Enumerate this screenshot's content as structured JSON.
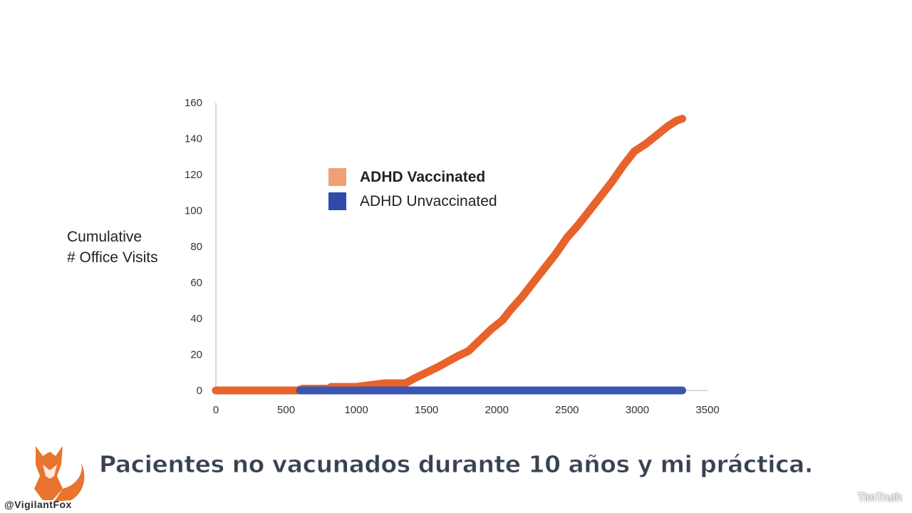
{
  "chart_data": {
    "type": "line",
    "ylabel_lines": [
      "Cumulative",
      "# Office Visits"
    ],
    "xlabel": "",
    "xlim": [
      0,
      3500
    ],
    "ylim": [
      0,
      160
    ],
    "x_ticks": [
      0,
      500,
      1000,
      1500,
      2000,
      2500,
      3000,
      3500
    ],
    "y_ticks": [
      0,
      20,
      40,
      60,
      80,
      100,
      120,
      140,
      160
    ],
    "grid": false,
    "legend_position": "upper-left",
    "series": [
      {
        "name": "ADHD Vaccinated",
        "color": "#e8622c",
        "legend_swatch": "#f0a072",
        "points": [
          [
            0,
            0
          ],
          [
            300,
            0
          ],
          [
            580,
            0
          ],
          [
            620,
            1
          ],
          [
            800,
            1
          ],
          [
            820,
            2
          ],
          [
            1000,
            2
          ],
          [
            1100,
            3
          ],
          [
            1200,
            4
          ],
          [
            1350,
            4
          ],
          [
            1420,
            7
          ],
          [
            1500,
            10
          ],
          [
            1580,
            13
          ],
          [
            1650,
            16
          ],
          [
            1720,
            19
          ],
          [
            1800,
            22
          ],
          [
            1880,
            28
          ],
          [
            1960,
            34
          ],
          [
            2040,
            39
          ],
          [
            2100,
            45
          ],
          [
            2180,
            52
          ],
          [
            2260,
            60
          ],
          [
            2340,
            68
          ],
          [
            2420,
            76
          ],
          [
            2500,
            85
          ],
          [
            2580,
            92
          ],
          [
            2660,
            100
          ],
          [
            2740,
            108
          ],
          [
            2820,
            116
          ],
          [
            2900,
            125
          ],
          [
            2980,
            133
          ],
          [
            3060,
            137
          ],
          [
            3140,
            142
          ],
          [
            3220,
            147
          ],
          [
            3280,
            150
          ],
          [
            3320,
            151
          ]
        ]
      },
      {
        "name": "ADHD Unvaccinated",
        "color": "#3a56b0",
        "legend_swatch": "#2f4aa8",
        "points": [
          [
            600,
            0
          ],
          [
            3320,
            0
          ]
        ]
      }
    ]
  },
  "caption": "Pacientes no vacunados durante 10 años y mi práctica.",
  "branding": {
    "logo_icon": "fox-icon",
    "handle": "@VigilantFox",
    "watermark": "TimTruth"
  }
}
